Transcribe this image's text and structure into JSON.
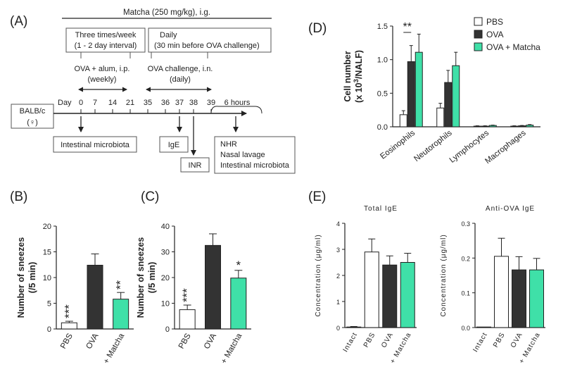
{
  "colors": {
    "pbs": "#ffffff",
    "ova": "#333333",
    "matcha": "#3fe0a8",
    "ink": "#222222"
  },
  "panelA": {
    "label": "(A)",
    "matcha_header": "Matcha (250 mg/kg), i.g.",
    "box_left": [
      "Three times/week",
      "(1 - 2 day interval)"
    ],
    "box_right": [
      "Daily",
      "(30 min before OVA challenge)"
    ],
    "sens": [
      "OVA + alum, i.p.",
      "(weekly)"
    ],
    "chal": [
      "OVA challenge, i.n.",
      "(daily)"
    ],
    "mouse": [
      "BALB/c",
      "(♀)"
    ],
    "day_label": "Day",
    "days": [
      "0",
      "7",
      "14",
      "21",
      "35",
      "36",
      "37",
      "38",
      "39"
    ],
    "hours": "6 hours",
    "out_microbiota": "Intestinal microbiota",
    "out_ige": "IgE",
    "out_inr": "INR",
    "out_final": [
      "NHR",
      "Nasal lavage",
      "Intestinal microbiota"
    ]
  },
  "chart_data": [
    {
      "id": "B",
      "label": "(B)",
      "type": "bar",
      "categories": [
        "PBS",
        "OVA",
        "+ Matcha"
      ],
      "values": [
        1.2,
        12.4,
        5.8
      ],
      "errors": [
        0.3,
        2.2,
        1.3
      ],
      "significance": [
        "***",
        "",
        "**"
      ],
      "ylabel": [
        "Number of sneezes",
        "(/5 min)"
      ],
      "ylim": [
        0,
        20
      ],
      "yticks": [
        "0",
        "5",
        "10",
        "15",
        "20"
      ]
    },
    {
      "id": "C",
      "label": "(C)",
      "type": "bar",
      "categories": [
        "PBS",
        "OVA",
        "+ Matcha"
      ],
      "values": [
        7.5,
        32.5,
        19.8
      ],
      "errors": [
        1.8,
        4.5,
        3.0
      ],
      "significance": [
        "***",
        "",
        "*"
      ],
      "ylabel": [
        "Number of sneezes",
        "(/5 min)"
      ],
      "ylim": [
        0,
        40
      ],
      "yticks": [
        "0",
        "10",
        "20",
        "30",
        "40"
      ]
    },
    {
      "id": "D",
      "label": "(D)",
      "type": "bar",
      "categories": [
        "Eosinophils",
        "Neutorophils",
        "Lymphocytes",
        "Macrophages"
      ],
      "series": [
        {
          "name": "PBS",
          "values": [
            0.18,
            0.28,
            0.01,
            0.01
          ],
          "errors": [
            0.06,
            0.07,
            0.005,
            0.005
          ]
        },
        {
          "name": "OVA",
          "values": [
            0.97,
            0.66,
            0.01,
            0.015
          ],
          "errors": [
            0.24,
            0.18,
            0.005,
            0.005
          ]
        },
        {
          "name": "OVA + Matcha",
          "values": [
            1.11,
            0.91,
            0.02,
            0.025
          ],
          "errors": [
            0.27,
            0.2,
            0.005,
            0.008
          ]
        }
      ],
      "significance": "**",
      "ylabel": [
        "Cell number",
        "(x 10",
        "3",
        "/NALF)"
      ],
      "ylim": [
        0,
        1.5
      ],
      "yticks": [
        "0.0",
        "0.5",
        "1.0",
        "1.5"
      ],
      "legend": [
        "PBS",
        "OVA",
        "OVA + Matcha"
      ]
    },
    {
      "id": "E1",
      "label": "(E)",
      "type": "bar",
      "title": "Total IgE",
      "categories": [
        "Intact",
        "PBS",
        "OVA",
        "+ Matcha"
      ],
      "values": [
        0.02,
        2.9,
        2.4,
        2.5
      ],
      "errors": [
        0.02,
        0.5,
        0.35,
        0.35
      ],
      "ylabel": "Concentration (μg/ml)",
      "ylim": [
        0,
        4
      ],
      "yticks": [
        "0",
        "1",
        "2",
        "3",
        "4"
      ]
    },
    {
      "id": "E2",
      "type": "bar",
      "title": "Anti-OVA IgE",
      "categories": [
        "Intact",
        "PBS",
        "OVA",
        "+ Matcha"
      ],
      "values": [
        0,
        0.205,
        0.166,
        0.166
      ],
      "errors": [
        0,
        0.052,
        0.038,
        0.033
      ],
      "ylabel": "Concentration (μg/ml)",
      "ylim": [
        0,
        0.3
      ],
      "yticks": [
        "0.0",
        "0.1",
        "0.2",
        "0.3"
      ]
    }
  ]
}
